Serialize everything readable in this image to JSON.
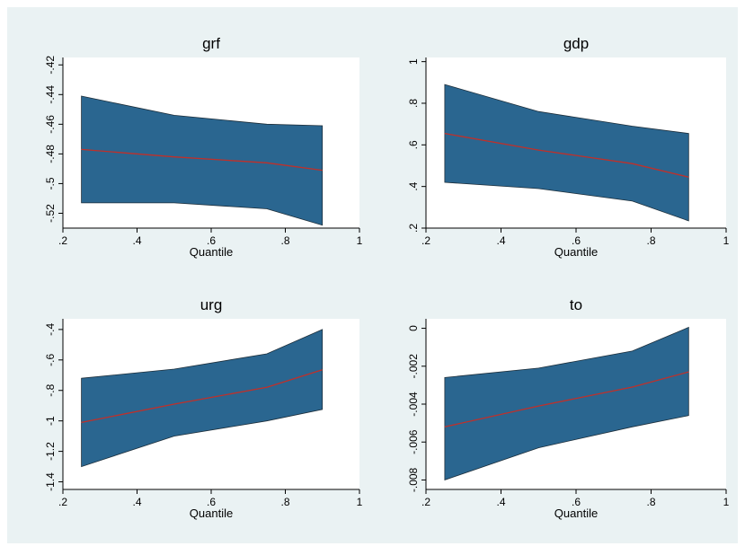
{
  "chart_data": [
    {
      "type": "area",
      "title": "grf",
      "xlabel": "Quantile",
      "xlim": [
        0.2,
        1
      ],
      "xticks": [
        0.2,
        0.4,
        0.6,
        0.8,
        1
      ],
      "xtick_labels": [
        ".2",
        ".4",
        ".6",
        ".8",
        "1"
      ],
      "ylim": [
        -0.53,
        -0.415
      ],
      "yticks": [
        -0.52,
        -0.5,
        -0.48,
        -0.46,
        -0.44,
        -0.42
      ],
      "ytick_labels": [
        "-.52",
        "-.5",
        "-.48",
        "-.46",
        "-.44",
        "-.42"
      ],
      "x": [
        0.25,
        0.5,
        0.75,
        0.9
      ],
      "band_upper": [
        -0.441,
        -0.454,
        -0.46,
        -0.461
      ],
      "band_lower": [
        -0.513,
        -0.513,
        -0.517,
        -0.528
      ],
      "estimate": [
        -0.477,
        -0.482,
        -0.486,
        -0.491
      ],
      "band_color": "#2a6690",
      "line_color": "#c0302a",
      "grid": false
    },
    {
      "type": "area",
      "title": "gdp",
      "xlabel": "Quantile",
      "xlim": [
        0.2,
        1
      ],
      "xticks": [
        0.2,
        0.4,
        0.6,
        0.8,
        1
      ],
      "xtick_labels": [
        ".2",
        ".4",
        ".6",
        ".8",
        "1"
      ],
      "ylim": [
        0.2,
        1.02
      ],
      "yticks": [
        0.2,
        0.4,
        0.6,
        0.8,
        1
      ],
      "ytick_labels": [
        ".2",
        ".4",
        ".6",
        ".8",
        "1"
      ],
      "x": [
        0.25,
        0.5,
        0.75,
        0.9
      ],
      "band_upper": [
        0.89,
        0.76,
        0.69,
        0.655
      ],
      "band_lower": [
        0.42,
        0.39,
        0.33,
        0.235
      ],
      "estimate": [
        0.655,
        0.575,
        0.51,
        0.445
      ],
      "band_color": "#2a6690",
      "line_color": "#c0302a",
      "grid": false
    },
    {
      "type": "area",
      "title": "urg",
      "xlabel": "Quantile",
      "xlim": [
        0.2,
        1
      ],
      "xticks": [
        0.2,
        0.4,
        0.6,
        0.8,
        1
      ],
      "xtick_labels": [
        ".2",
        ".4",
        ".6",
        ".8",
        "1"
      ],
      "ylim": [
        -1.45,
        -0.33
      ],
      "yticks": [
        -1.4,
        -1.2,
        -1,
        -0.8,
        -0.6,
        -0.4
      ],
      "ytick_labels": [
        "-1.4",
        "-1.2",
        "-1",
        "-.8",
        "-.6",
        "-.4"
      ],
      "x": [
        0.25,
        0.5,
        0.75,
        0.9
      ],
      "band_upper": [
        -0.72,
        -0.66,
        -0.56,
        -0.4
      ],
      "band_lower": [
        -1.3,
        -1.1,
        -1.0,
        -0.925
      ],
      "estimate": [
        -1.01,
        -0.89,
        -0.78,
        -0.665
      ],
      "band_color": "#2a6690",
      "line_color": "#c0302a",
      "grid": false
    },
    {
      "type": "area",
      "title": "to",
      "xlabel": "Quantile",
      "xlim": [
        0.2,
        1
      ],
      "xticks": [
        0.2,
        0.4,
        0.6,
        0.8,
        1
      ],
      "xtick_labels": [
        ".2",
        ".4",
        ".6",
        ".8",
        "1"
      ],
      "ylim": [
        -0.0085,
        0.0005
      ],
      "yticks": [
        -0.008,
        -0.006,
        -0.004,
        -0.002,
        0
      ],
      "ytick_labels": [
        "-.008",
        "-.006",
        "-.004",
        "-.002",
        "0"
      ],
      "x": [
        0.25,
        0.5,
        0.75,
        0.9
      ],
      "band_upper": [
        -0.0026,
        -0.0021,
        -0.0012,
        5e-05
      ],
      "band_lower": [
        -0.008,
        -0.0063,
        -0.0052,
        -0.0046
      ],
      "estimate": [
        -0.0052,
        -0.0041,
        -0.0031,
        -0.0023
      ],
      "band_color": "#2a6690",
      "line_color": "#c0302a",
      "grid": false
    }
  ],
  "colors": {
    "outer_background": "#ffffff",
    "graph_region": "#eaf2f3",
    "plot_region": "#ffffff"
  }
}
